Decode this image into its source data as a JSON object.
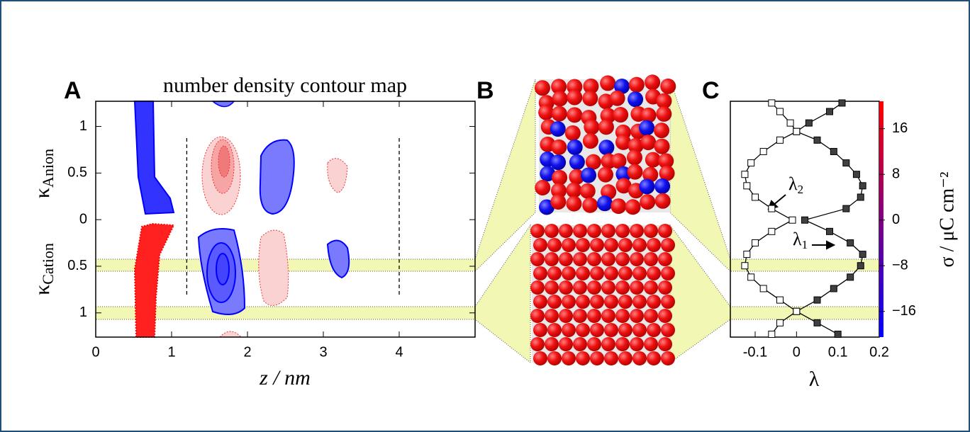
{
  "panel_b": {
    "label": "B"
  },
  "chart_data": [
    {
      "type": "contour",
      "panel_label": "A",
      "title": "number density contour map",
      "xlabel": "z / nm",
      "ylabel_top": {
        "main": "κ",
        "sub": "Anion"
      },
      "ylabel_bottom": {
        "main": "κ",
        "sub": "Cation"
      },
      "xlim": [
        0,
        5
      ],
      "xticks": [
        0,
        1,
        2,
        3,
        4
      ],
      "ylim": [
        -1.26,
        1.27
      ],
      "yticks": [
        {
          "value": -1,
          "label": "1"
        },
        {
          "value": -0.5,
          "label": "0.5"
        },
        0,
        0.5,
        1
      ],
      "vlines": [
        1.2,
        4
      ]
    },
    {
      "type": "line",
      "panel_label": "C",
      "xlabel": "λ",
      "xlim": [
        -0.16,
        0.2
      ],
      "xticks": [
        -0.1,
        0,
        0.1,
        0.2
      ],
      "ylim": [
        -20.5,
        20.8
      ],
      "y": [
        20.5,
        19,
        17,
        15.5,
        14,
        12,
        10,
        8,
        6,
        4,
        2,
        0,
        -2,
        -4,
        -6,
        -8,
        -10,
        -12,
        -14,
        -16,
        -18,
        -20
      ],
      "series": [
        {
          "color": "#404040",
          "marker": "filled",
          "values": [
            0.11,
            0.08,
            0.03,
            0.0,
            0.05,
            0.09,
            0.12,
            0.145,
            0.16,
            0.155,
            0.12,
            0.02,
            0.08,
            0.13,
            0.16,
            0.155,
            0.13,
            0.09,
            0.05,
            0.0,
            0.05,
            0.1
          ]
        },
        {
          "color": "#ffffff",
          "marker": "open",
          "values": [
            -0.06,
            -0.04,
            -0.015,
            0.0,
            -0.04,
            -0.08,
            -0.11,
            -0.125,
            -0.12,
            -0.1,
            -0.06,
            -0.01,
            -0.06,
            -0.1,
            -0.12,
            -0.125,
            -0.11,
            -0.08,
            -0.04,
            0.0,
            -0.04,
            -0.06
          ]
        }
      ],
      "annotations": [
        {
          "main": "λ",
          "sub": "2"
        },
        {
          "main": "λ",
          "sub": "1"
        }
      ],
      "colorbar": {
        "label": "σ / μC cm⁻²",
        "colors": [
          "#0000ff",
          "#ff0000"
        ],
        "ticks": [
          {
            "value": -16,
            "label": "−16"
          },
          {
            "value": -8,
            "label": "−8"
          },
          0,
          8,
          16
        ]
      }
    }
  ]
}
